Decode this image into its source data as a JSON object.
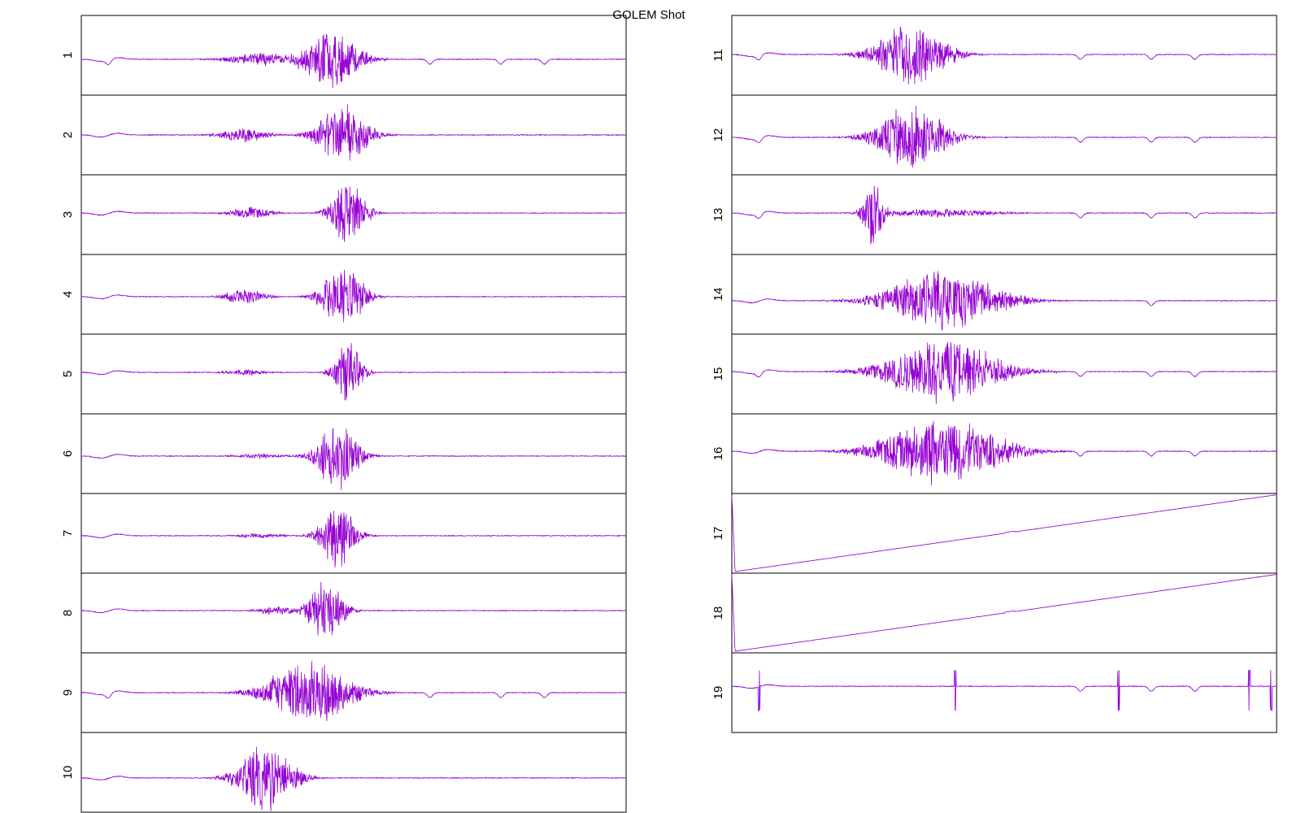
{
  "title": "GOLEM Shot",
  "chart_data": {
    "type": "line",
    "title": "GOLEM Shot",
    "xlabel": "",
    "ylabel": "",
    "grid": false,
    "color": "#9400D3",
    "panels": [
      {
        "label": "1",
        "baseline": 0.55,
        "bursts": [
          {
            "center": 0.46,
            "width": 0.08,
            "amp": 0.42
          },
          {
            "center": 0.33,
            "width": 0.1,
            "amp": 0.09
          }
        ],
        "dips": [
          0.05,
          0.64,
          0.77,
          0.85
        ],
        "trend": 0
      },
      {
        "label": "2",
        "baseline": 0.5,
        "bursts": [
          {
            "center": 0.48,
            "width": 0.07,
            "amp": 0.44
          },
          {
            "center": 0.3,
            "width": 0.07,
            "amp": 0.1
          }
        ],
        "dips": [],
        "trend": 0
      },
      {
        "label": "3",
        "baseline": 0.48,
        "bursts": [
          {
            "center": 0.49,
            "width": 0.05,
            "amp": 0.44
          },
          {
            "center": 0.31,
            "width": 0.06,
            "amp": 0.08
          }
        ],
        "dips": [],
        "trend": 0
      },
      {
        "label": "4",
        "baseline": 0.53,
        "bursts": [
          {
            "center": 0.48,
            "width": 0.06,
            "amp": 0.45
          },
          {
            "center": 0.3,
            "width": 0.06,
            "amp": 0.1
          }
        ],
        "dips": [],
        "trend": 0
      },
      {
        "label": "5",
        "baseline": 0.48,
        "bursts": [
          {
            "center": 0.49,
            "width": 0.04,
            "amp": 0.45
          },
          {
            "center": 0.3,
            "width": 0.06,
            "amp": 0.04
          }
        ],
        "dips": [],
        "trend": 0
      },
      {
        "label": "6",
        "baseline": 0.53,
        "bursts": [
          {
            "center": 0.47,
            "width": 0.06,
            "amp": 0.45
          },
          {
            "center": 0.33,
            "width": 0.08,
            "amp": 0.03
          }
        ],
        "dips": [],
        "trend": 0
      },
      {
        "label": "7",
        "baseline": 0.53,
        "bursts": [
          {
            "center": 0.47,
            "width": 0.05,
            "amp": 0.45
          },
          {
            "center": 0.33,
            "width": 0.08,
            "amp": 0.03
          }
        ],
        "dips": [],
        "trend": 0
      },
      {
        "label": "8",
        "baseline": 0.47,
        "bursts": [
          {
            "center": 0.45,
            "width": 0.05,
            "amp": 0.42
          },
          {
            "center": 0.36,
            "width": 0.06,
            "amp": 0.06
          }
        ],
        "dips": [],
        "trend": 0
      },
      {
        "label": "9",
        "baseline": 0.5,
        "bursts": [
          {
            "center": 0.42,
            "width": 0.12,
            "amp": 0.46
          }
        ],
        "dips": [
          0.05,
          0.64,
          0.77,
          0.85
        ],
        "trend": 0
      },
      {
        "label": "10",
        "baseline": 0.57,
        "bursts": [
          {
            "center": 0.34,
            "width": 0.08,
            "amp": 0.45
          }
        ],
        "dips": [],
        "trend": 0
      },
      {
        "label": "11",
        "baseline": 0.49,
        "bursts": [
          {
            "center": 0.33,
            "width": 0.1,
            "amp": 0.44
          }
        ],
        "dips": [
          0.05,
          0.64,
          0.77,
          0.85
        ],
        "trend": 0
      },
      {
        "label": "12",
        "baseline": 0.53,
        "bursts": [
          {
            "center": 0.33,
            "width": 0.1,
            "amp": 0.44
          }
        ],
        "dips": [
          0.05,
          0.64,
          0.77,
          0.85
        ],
        "trend": 0
      },
      {
        "label": "13",
        "baseline": 0.48,
        "bursts": [
          {
            "center": 0.26,
            "width": 0.03,
            "amp": 0.44
          },
          {
            "center": 0.38,
            "width": 0.16,
            "amp": 0.06
          }
        ],
        "dips": [
          0.05,
          0.64,
          0.77,
          0.85
        ],
        "trend": 0
      },
      {
        "label": "14",
        "baseline": 0.58,
        "bursts": [
          {
            "center": 0.39,
            "width": 0.16,
            "amp": 0.42
          }
        ],
        "dips": [
          0.77
        ],
        "trend": 0
      },
      {
        "label": "15",
        "baseline": 0.47,
        "bursts": [
          {
            "center": 0.39,
            "width": 0.16,
            "amp": 0.44
          }
        ],
        "dips": [
          0.05,
          0.64,
          0.77,
          0.85
        ],
        "trend": 0
      },
      {
        "label": "16",
        "baseline": 0.47,
        "bursts": [
          {
            "center": 0.39,
            "width": 0.17,
            "amp": 0.46
          }
        ],
        "dips": [
          0.64,
          0.77,
          0.85
        ],
        "trend": 0
      },
      {
        "label": "17",
        "baseline": 0.98,
        "bursts": [],
        "dips": [],
        "trend": 1
      },
      {
        "label": "18",
        "baseline": 0.98,
        "bursts": [],
        "dips": [],
        "trend": 1
      },
      {
        "label": "19",
        "baseline": 0.42,
        "bursts": [],
        "dips": [
          0.64,
          0.77,
          0.85
        ],
        "trend": 0,
        "spikes": [
          0.05,
          0.41,
          0.71,
          0.95,
          0.99
        ]
      }
    ]
  }
}
